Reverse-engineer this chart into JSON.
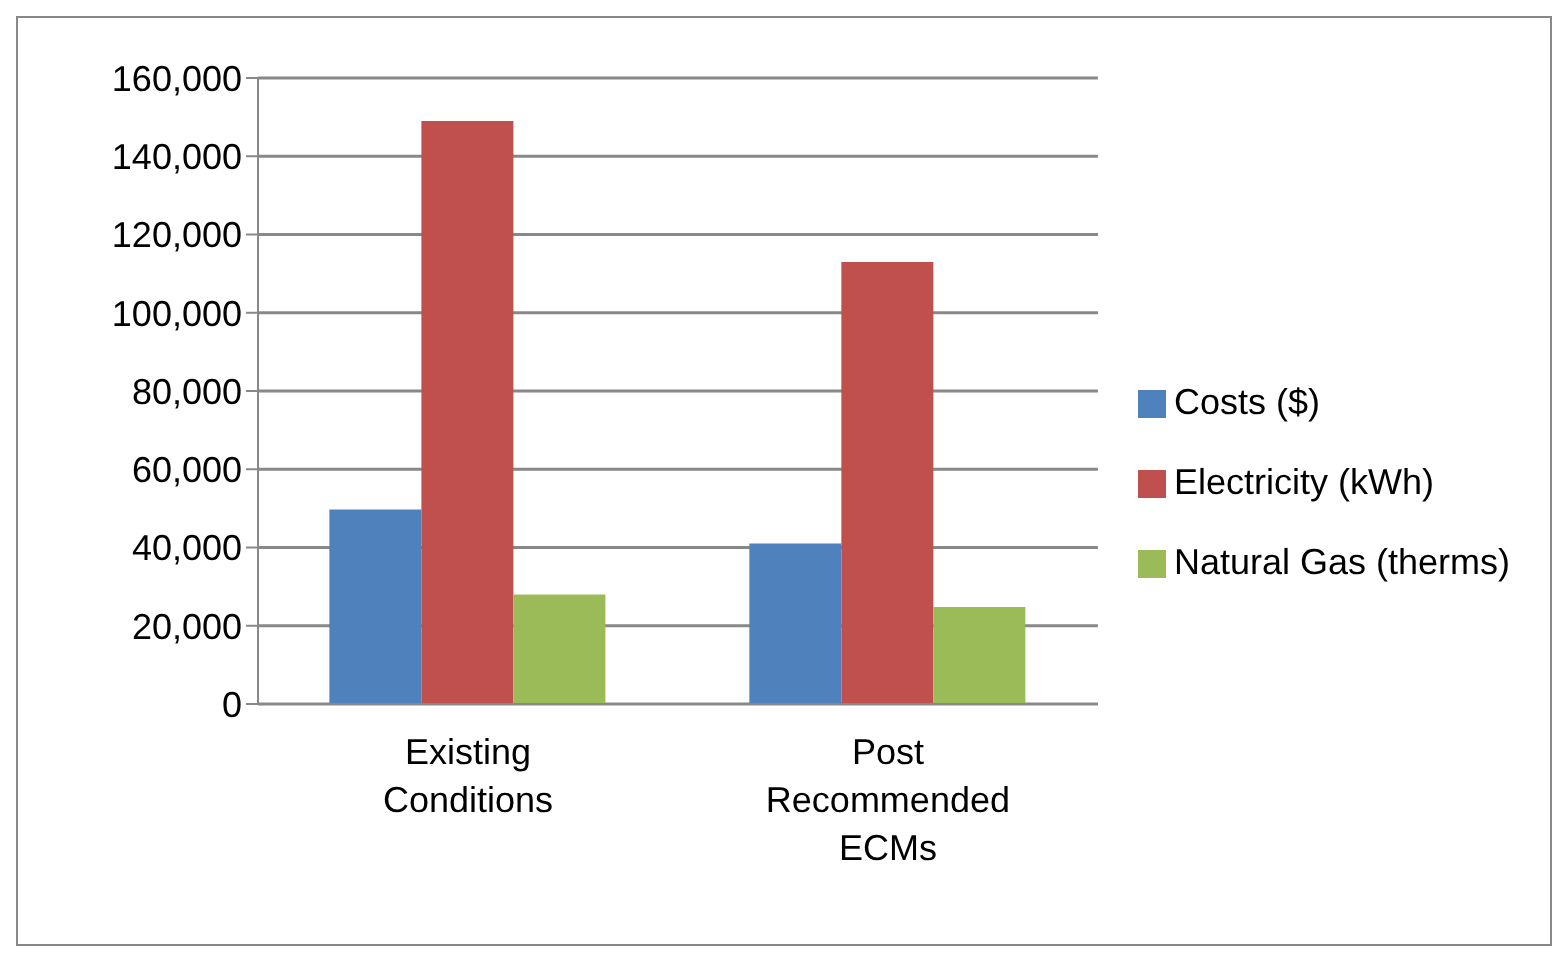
{
  "chart_data": {
    "type": "bar",
    "categories": [
      "Existing Conditions",
      "Post Recommended ECMs"
    ],
    "series": [
      {
        "name": "Costs ($)",
        "color": "#4f81bd",
        "values": [
          49700,
          41000
        ]
      },
      {
        "name": "Electricity (kWh)",
        "color": "#c0504d",
        "values": [
          149000,
          113000
        ]
      },
      {
        "name": "Natural Gas (therms)",
        "color": "#9bbb59",
        "values": [
          28000,
          24800
        ]
      }
    ],
    "ylim": [
      0,
      160000
    ],
    "yticks": [
      0,
      {
        "value": 20000,
        "label": "20,000"
      },
      {
        "value": 40000,
        "label": "40,000"
      },
      {
        "value": 60000,
        "label": "60,000"
      },
      {
        "value": 80000,
        "label": "80,000"
      },
      {
        "value": 100000,
        "label": "100,000"
      },
      {
        "value": 120000,
        "label": "120,000"
      },
      {
        "value": 140000,
        "label": "140,000"
      },
      {
        "value": 160000,
        "label": "160,000"
      }
    ],
    "grid": "y",
    "legend": "right"
  }
}
